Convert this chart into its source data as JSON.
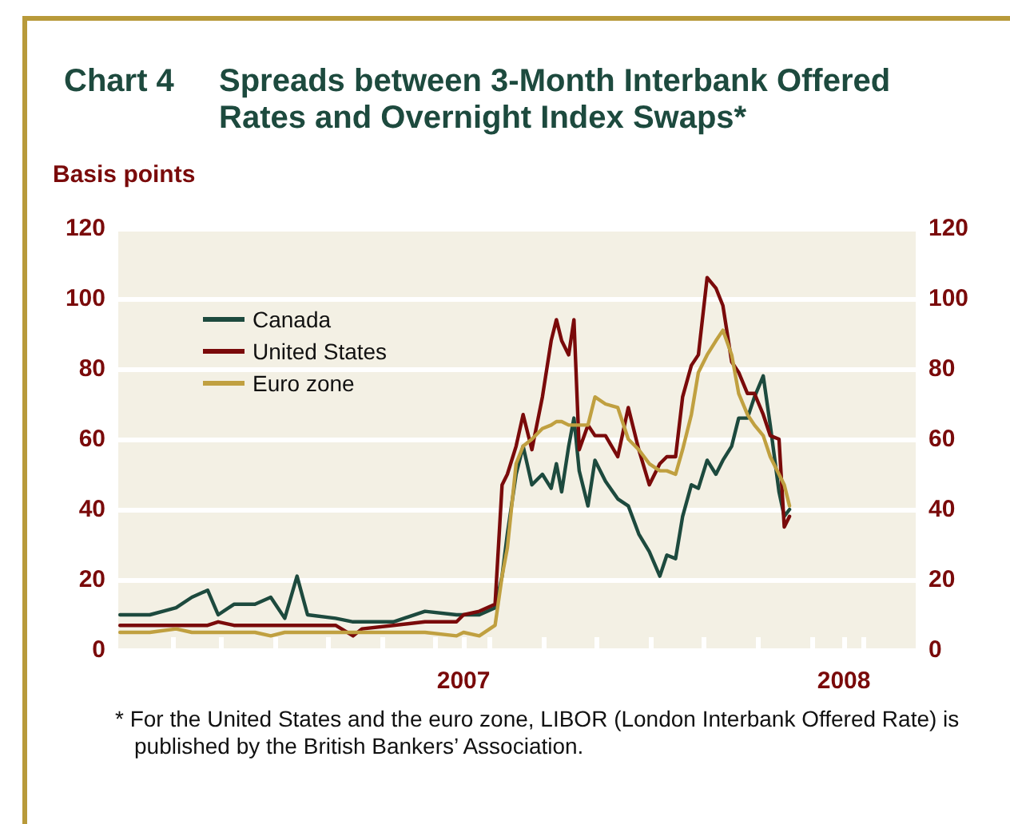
{
  "chart_data": {
    "type": "line",
    "title": "Chart 4    Spreads between 3-Month Interbank Offered Rates and Overnight Index Swaps*",
    "ylabel": "Basis points",
    "x": [
      "2007-01-02",
      "2007-01-19",
      "2007-02-03",
      "2007-02-12",
      "2007-02-21",
      "2007-02-27",
      "2007-03-08",
      "2007-03-20",
      "2007-03-29",
      "2007-04-06",
      "2007-04-13",
      "2007-04-19",
      "2007-05-05",
      "2007-05-15",
      "2007-05-20",
      "2007-06-07",
      "2007-06-25",
      "2007-07-13",
      "2007-07-17",
      "2007-07-26",
      "2007-08-04",
      "2007-08-08",
      "2007-08-11",
      "2007-08-16",
      "2007-08-20",
      "2007-08-25",
      "2007-08-31",
      "2007-09-05",
      "2007-09-08",
      "2007-09-11",
      "2007-09-15",
      "2007-09-18",
      "2007-09-21",
      "2007-09-26",
      "2007-09-30",
      "2007-10-06",
      "2007-10-13",
      "2007-10-19",
      "2007-10-25",
      "2007-10-31",
      "2007-11-06",
      "2007-11-10",
      "2007-11-15",
      "2007-11-19",
      "2007-11-24",
      "2007-11-28",
      "2007-12-03",
      "2007-12-08",
      "2007-12-12",
      "2007-12-17",
      "2007-12-21",
      "2007-12-26",
      "2007-12-30",
      "2008-01-04",
      "2008-01-08",
      "2008-01-13",
      "2008-01-16",
      "2008-01-19"
    ],
    "series": [
      {
        "name": "Canada",
        "color": "#1d4a3e",
        "values": [
          10,
          10,
          12,
          15,
          17,
          10,
          13,
          13,
          15,
          9,
          21,
          10,
          9,
          8,
          8,
          8,
          11,
          10,
          10,
          10,
          12,
          21,
          33,
          50,
          58,
          47,
          50,
          46,
          53,
          45,
          58,
          66,
          51,
          41,
          54,
          48,
          43,
          41,
          33,
          28,
          21,
          27,
          26,
          38,
          47,
          46,
          54,
          50,
          54,
          58,
          66,
          66,
          72,
          78,
          64,
          45,
          38,
          40
        ]
      },
      {
        "name": "United States",
        "color": "#7a0a0a",
        "values": [
          7,
          7,
          7,
          7,
          7,
          8,
          7,
          7,
          7,
          7,
          7,
          7,
          7,
          4,
          6,
          7,
          8,
          8,
          10,
          11,
          13,
          47,
          50,
          58,
          67,
          57,
          72,
          88,
          94,
          88,
          84,
          94,
          57,
          64,
          61,
          61,
          55,
          69,
          57,
          47,
          53,
          55,
          55,
          72,
          81,
          84,
          106,
          103,
          98,
          82,
          79,
          73,
          73,
          67,
          61,
          60,
          35,
          38
        ]
      },
      {
        "name": "Euro zone",
        "color": "#c0a040",
        "values": [
          5,
          5,
          6,
          5,
          5,
          5,
          5,
          5,
          4,
          5,
          5,
          5,
          5,
          5,
          5,
          5,
          5,
          4,
          5,
          4,
          7,
          21,
          29,
          53,
          58,
          60,
          63,
          64,
          65,
          65,
          64,
          64,
          64,
          64,
          72,
          70,
          69,
          60,
          57,
          53,
          51,
          51,
          50,
          57,
          67,
          79,
          84,
          88,
          91,
          84,
          73,
          67,
          64,
          61,
          55,
          50,
          47,
          41
        ]
      }
    ],
    "xlim": [
      "2007-01-01",
      "2008-03-31"
    ],
    "xticks": [
      {
        "value": "2007-02-01",
        "label": null
      },
      {
        "value": "2007-03-01",
        "label": null
      },
      {
        "value": "2007-04-01",
        "label": null
      },
      {
        "value": "2007-05-01",
        "label": null
      },
      {
        "value": "2007-06-01",
        "label": null
      },
      {
        "value": "2007-07-01",
        "label": null
      },
      {
        "value": "2007-07-17",
        "label": "2007"
      },
      {
        "value": "2007-08-01",
        "label": null
      },
      {
        "value": "2007-09-01",
        "label": null
      },
      {
        "value": "2007-10-01",
        "label": null
      },
      {
        "value": "2007-11-01",
        "label": null
      },
      {
        "value": "2007-12-01",
        "label": null
      },
      {
        "value": "2008-01-01",
        "label": null
      },
      {
        "value": "2008-02-01",
        "label": null
      },
      {
        "value": "2008-02-19",
        "label": "2008"
      },
      {
        "value": "2008-03-01",
        "label": null
      }
    ],
    "ylim": [
      0,
      120
    ],
    "yticks": [
      0,
      20,
      40,
      60,
      80,
      100,
      120
    ],
    "y2lim": [
      0,
      120
    ],
    "y2ticks": [
      0,
      20,
      40,
      60,
      80,
      100,
      120
    ],
    "grid": "y",
    "legend": "top left",
    "marker": "none",
    "line_style": "solid",
    "annotations": [
      "* For the United States and the euro zone, LIBOR (London Interbank Offered Rate) is published by the British Bankers’ Association."
    ]
  }
}
